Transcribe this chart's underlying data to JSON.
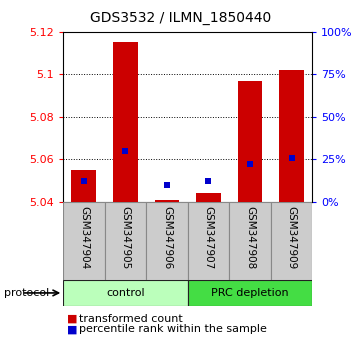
{
  "title": "GDS3532 / ILMN_1850440",
  "samples": [
    "GSM347904",
    "GSM347905",
    "GSM347906",
    "GSM347907",
    "GSM347908",
    "GSM347909"
  ],
  "bar_base": 5.04,
  "bar_tops": [
    5.055,
    5.115,
    5.041,
    5.044,
    5.097,
    5.102
  ],
  "ylim": [
    5.04,
    5.12
  ],
  "yticks_left": [
    5.04,
    5.06,
    5.08,
    5.1,
    5.12
  ],
  "yticks_right": [
    0,
    25,
    50,
    75,
    100
  ],
  "right_ylim": [
    0,
    100
  ],
  "percentile_right": [
    12,
    30,
    10,
    12,
    22,
    26
  ],
  "bar_color": "#cc0000",
  "blue_color": "#0000cc",
  "bar_width": 0.6,
  "groups": [
    {
      "label": "control",
      "samples": [
        0,
        1,
        2
      ],
      "color": "#bbffbb",
      "edge_color": "#44aa44"
    },
    {
      "label": "PRC depletion",
      "samples": [
        3,
        4,
        5
      ],
      "color": "#44dd44",
      "edge_color": "#228822"
    }
  ],
  "protocol_label": "protocol",
  "legend_red": "transformed count",
  "legend_blue": "percentile rank within the sample",
  "bg_plot": "#ffffff",
  "sample_bg": "#cccccc"
}
